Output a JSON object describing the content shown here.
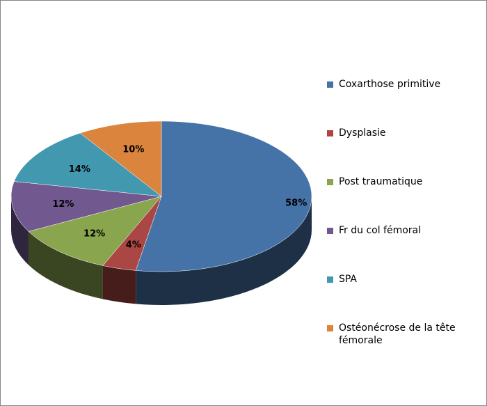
{
  "chart_data": {
    "type": "pie",
    "style": "3d",
    "legend_position": "right",
    "slices": [
      {
        "label": "Coxarthose primitive",
        "value": 58,
        "display": "58%",
        "color": "#4572A7"
      },
      {
        "label": "Dysplasie",
        "value": 4,
        "display": "4%",
        "color": "#AA4643"
      },
      {
        "label": "Post traumatique",
        "value": 12,
        "display": "12%",
        "color": "#89A54E"
      },
      {
        "label": "Fr du col fémoral",
        "value": 12,
        "display": "12%",
        "color": "#71588F"
      },
      {
        "label": "SPA",
        "value": 14,
        "display": "14%",
        "color": "#4198AF"
      },
      {
        "label": "Ostéonécrose de la tête fémorale",
        "value": 10,
        "display": "10%",
        "color": "#DB843D"
      }
    ]
  }
}
